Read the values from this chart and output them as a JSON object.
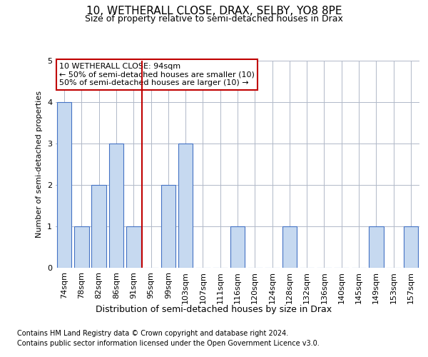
{
  "title": "10, WETHERALL CLOSE, DRAX, SELBY, YO8 8PE",
  "subtitle": "Size of property relative to semi-detached houses in Drax",
  "xlabel": "Distribution of semi-detached houses by size in Drax",
  "ylabel": "Number of semi-detached properties",
  "categories": [
    "74sqm",
    "78sqm",
    "82sqm",
    "86sqm",
    "91sqm",
    "95sqm",
    "99sqm",
    "103sqm",
    "107sqm",
    "111sqm",
    "116sqm",
    "120sqm",
    "124sqm",
    "128sqm",
    "132sqm",
    "136sqm",
    "140sqm",
    "145sqm",
    "149sqm",
    "153sqm",
    "157sqm"
  ],
  "values": [
    4,
    1,
    2,
    3,
    1,
    0,
    2,
    3,
    0,
    0,
    1,
    0,
    0,
    1,
    0,
    0,
    0,
    0,
    1,
    0,
    1
  ],
  "bar_color": "#c6d9f0",
  "bar_edge_color": "#4472c4",
  "annotation_title": "10 WETHERALL CLOSE: 94sqm",
  "annotation_line1": "← 50% of semi-detached houses are smaller (10)",
  "annotation_line2": "50% of semi-detached houses are larger (10) →",
  "ylim": [
    0,
    5
  ],
  "yticks": [
    0,
    1,
    2,
    3,
    4,
    5
  ],
  "footer1": "Contains HM Land Registry data © Crown copyright and database right 2024.",
  "footer2": "Contains public sector information licensed under the Open Government Licence v3.0.",
  "background_color": "#ffffff",
  "median_color": "#c00000",
  "annotation_box_color": "#ffffff",
  "annotation_box_edge_color": "#c00000",
  "title_fontsize": 11,
  "subtitle_fontsize": 9,
  "ylabel_fontsize": 8,
  "tick_fontsize": 8,
  "footer_fontsize": 7,
  "annotation_fontsize": 8,
  "xlabel_fontsize": 9
}
